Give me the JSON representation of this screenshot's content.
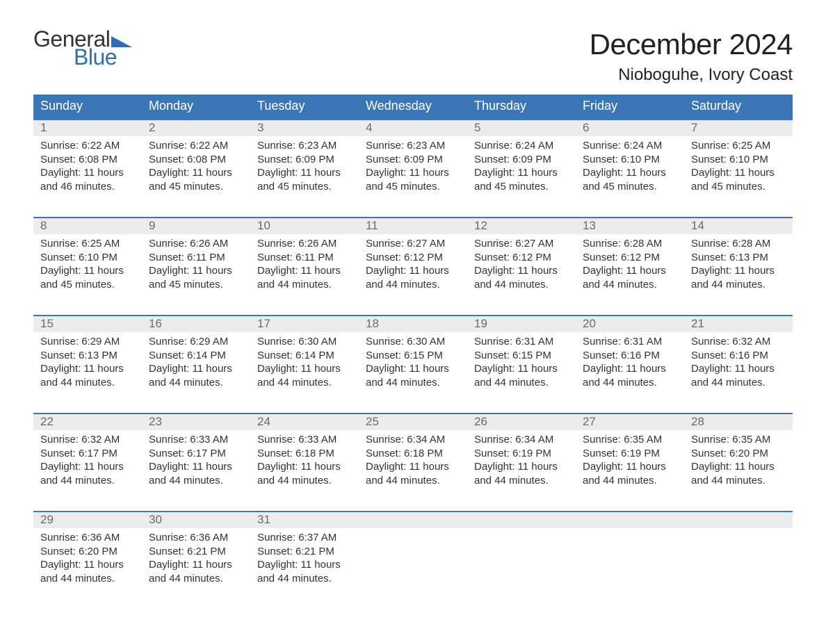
{
  "brand": {
    "word1": "General",
    "word2": "Blue",
    "accent_color": "#2f6fb0"
  },
  "title": "December 2024",
  "location": "Nioboguhe, Ivory Coast",
  "weekday_labels": [
    "Sunday",
    "Monday",
    "Tuesday",
    "Wednesday",
    "Thursday",
    "Friday",
    "Saturday"
  ],
  "colors": {
    "header_bg": "#3b77b6",
    "header_text": "#ffffff",
    "daynum_bg": "#ececec",
    "daynum_text": "#6a6a6a",
    "body_text": "#333333",
    "rule": "#3b77b6"
  },
  "weeks": [
    [
      {
        "n": "1",
        "sunrise": "Sunrise: 6:22 AM",
        "sunset": "Sunset: 6:08 PM",
        "day1": "Daylight: 11 hours",
        "day2": "and 46 minutes."
      },
      {
        "n": "2",
        "sunrise": "Sunrise: 6:22 AM",
        "sunset": "Sunset: 6:08 PM",
        "day1": "Daylight: 11 hours",
        "day2": "and 45 minutes."
      },
      {
        "n": "3",
        "sunrise": "Sunrise: 6:23 AM",
        "sunset": "Sunset: 6:09 PM",
        "day1": "Daylight: 11 hours",
        "day2": "and 45 minutes."
      },
      {
        "n": "4",
        "sunrise": "Sunrise: 6:23 AM",
        "sunset": "Sunset: 6:09 PM",
        "day1": "Daylight: 11 hours",
        "day2": "and 45 minutes."
      },
      {
        "n": "5",
        "sunrise": "Sunrise: 6:24 AM",
        "sunset": "Sunset: 6:09 PM",
        "day1": "Daylight: 11 hours",
        "day2": "and 45 minutes."
      },
      {
        "n": "6",
        "sunrise": "Sunrise: 6:24 AM",
        "sunset": "Sunset: 6:10 PM",
        "day1": "Daylight: 11 hours",
        "day2": "and 45 minutes."
      },
      {
        "n": "7",
        "sunrise": "Sunrise: 6:25 AM",
        "sunset": "Sunset: 6:10 PM",
        "day1": "Daylight: 11 hours",
        "day2": "and 45 minutes."
      }
    ],
    [
      {
        "n": "8",
        "sunrise": "Sunrise: 6:25 AM",
        "sunset": "Sunset: 6:10 PM",
        "day1": "Daylight: 11 hours",
        "day2": "and 45 minutes."
      },
      {
        "n": "9",
        "sunrise": "Sunrise: 6:26 AM",
        "sunset": "Sunset: 6:11 PM",
        "day1": "Daylight: 11 hours",
        "day2": "and 45 minutes."
      },
      {
        "n": "10",
        "sunrise": "Sunrise: 6:26 AM",
        "sunset": "Sunset: 6:11 PM",
        "day1": "Daylight: 11 hours",
        "day2": "and 44 minutes."
      },
      {
        "n": "11",
        "sunrise": "Sunrise: 6:27 AM",
        "sunset": "Sunset: 6:12 PM",
        "day1": "Daylight: 11 hours",
        "day2": "and 44 minutes."
      },
      {
        "n": "12",
        "sunrise": "Sunrise: 6:27 AM",
        "sunset": "Sunset: 6:12 PM",
        "day1": "Daylight: 11 hours",
        "day2": "and 44 minutes."
      },
      {
        "n": "13",
        "sunrise": "Sunrise: 6:28 AM",
        "sunset": "Sunset: 6:12 PM",
        "day1": "Daylight: 11 hours",
        "day2": "and 44 minutes."
      },
      {
        "n": "14",
        "sunrise": "Sunrise: 6:28 AM",
        "sunset": "Sunset: 6:13 PM",
        "day1": "Daylight: 11 hours",
        "day2": "and 44 minutes."
      }
    ],
    [
      {
        "n": "15",
        "sunrise": "Sunrise: 6:29 AM",
        "sunset": "Sunset: 6:13 PM",
        "day1": "Daylight: 11 hours",
        "day2": "and 44 minutes."
      },
      {
        "n": "16",
        "sunrise": "Sunrise: 6:29 AM",
        "sunset": "Sunset: 6:14 PM",
        "day1": "Daylight: 11 hours",
        "day2": "and 44 minutes."
      },
      {
        "n": "17",
        "sunrise": "Sunrise: 6:30 AM",
        "sunset": "Sunset: 6:14 PM",
        "day1": "Daylight: 11 hours",
        "day2": "and 44 minutes."
      },
      {
        "n": "18",
        "sunrise": "Sunrise: 6:30 AM",
        "sunset": "Sunset: 6:15 PM",
        "day1": "Daylight: 11 hours",
        "day2": "and 44 minutes."
      },
      {
        "n": "19",
        "sunrise": "Sunrise: 6:31 AM",
        "sunset": "Sunset: 6:15 PM",
        "day1": "Daylight: 11 hours",
        "day2": "and 44 minutes."
      },
      {
        "n": "20",
        "sunrise": "Sunrise: 6:31 AM",
        "sunset": "Sunset: 6:16 PM",
        "day1": "Daylight: 11 hours",
        "day2": "and 44 minutes."
      },
      {
        "n": "21",
        "sunrise": "Sunrise: 6:32 AM",
        "sunset": "Sunset: 6:16 PM",
        "day1": "Daylight: 11 hours",
        "day2": "and 44 minutes."
      }
    ],
    [
      {
        "n": "22",
        "sunrise": "Sunrise: 6:32 AM",
        "sunset": "Sunset: 6:17 PM",
        "day1": "Daylight: 11 hours",
        "day2": "and 44 minutes."
      },
      {
        "n": "23",
        "sunrise": "Sunrise: 6:33 AM",
        "sunset": "Sunset: 6:17 PM",
        "day1": "Daylight: 11 hours",
        "day2": "and 44 minutes."
      },
      {
        "n": "24",
        "sunrise": "Sunrise: 6:33 AM",
        "sunset": "Sunset: 6:18 PM",
        "day1": "Daylight: 11 hours",
        "day2": "and 44 minutes."
      },
      {
        "n": "25",
        "sunrise": "Sunrise: 6:34 AM",
        "sunset": "Sunset: 6:18 PM",
        "day1": "Daylight: 11 hours",
        "day2": "and 44 minutes."
      },
      {
        "n": "26",
        "sunrise": "Sunrise: 6:34 AM",
        "sunset": "Sunset: 6:19 PM",
        "day1": "Daylight: 11 hours",
        "day2": "and 44 minutes."
      },
      {
        "n": "27",
        "sunrise": "Sunrise: 6:35 AM",
        "sunset": "Sunset: 6:19 PM",
        "day1": "Daylight: 11 hours",
        "day2": "and 44 minutes."
      },
      {
        "n": "28",
        "sunrise": "Sunrise: 6:35 AM",
        "sunset": "Sunset: 6:20 PM",
        "day1": "Daylight: 11 hours",
        "day2": "and 44 minutes."
      }
    ],
    [
      {
        "n": "29",
        "sunrise": "Sunrise: 6:36 AM",
        "sunset": "Sunset: 6:20 PM",
        "day1": "Daylight: 11 hours",
        "day2": "and 44 minutes."
      },
      {
        "n": "30",
        "sunrise": "Sunrise: 6:36 AM",
        "sunset": "Sunset: 6:21 PM",
        "day1": "Daylight: 11 hours",
        "day2": "and 44 minutes."
      },
      {
        "n": "31",
        "sunrise": "Sunrise: 6:37 AM",
        "sunset": "Sunset: 6:21 PM",
        "day1": "Daylight: 11 hours",
        "day2": "and 44 minutes."
      },
      null,
      null,
      null,
      null
    ]
  ]
}
